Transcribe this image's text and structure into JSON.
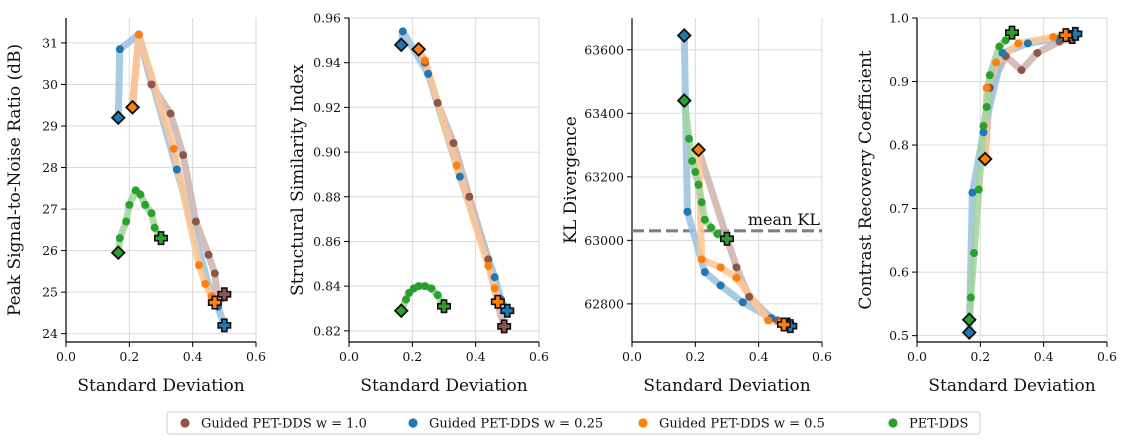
{
  "colors": {
    "guided_w1": "#8c564b",
    "guided_w025": "#1f77b4",
    "guided_w05": "#ff7f0e",
    "pet_dds": "#2ca02c",
    "reference_line": "#808080"
  },
  "legend": [
    {
      "label": "Guided PET-DDS w = 1.0",
      "color": "#8c564b"
    },
    {
      "label": "Guided PET-DDS w = 0.25",
      "color": "#1f77b4"
    },
    {
      "label": "Guided PET-DDS w = 0.5",
      "color": "#ff7f0e"
    },
    {
      "label": "PET-DDS",
      "color": "#2ca02c"
    }
  ],
  "chart_data": [
    {
      "type": "line",
      "ylabel": "Peak Signal-to-Noise Ratio (dB)",
      "xlabel": "Standard Deviation",
      "xlim": [
        0.0,
        0.6
      ],
      "ylim": [
        23.8,
        31.6
      ],
      "xticks": [
        "0.0",
        "0.2",
        "0.4",
        "0.6"
      ],
      "yticks": [
        "24",
        "25",
        "26",
        "27",
        "28",
        "29",
        "30",
        "31"
      ],
      "grid": true,
      "series": [
        {
          "name": "Guided PET-DDS w = 1.0",
          "x": [
            0.21,
            0.23,
            0.27,
            0.33,
            0.37,
            0.41,
            0.45,
            0.47,
            0.48,
            0.5
          ],
          "y": [
            29.45,
            31.2,
            30.0,
            29.3,
            28.3,
            26.7,
            25.9,
            25.45,
            24.7,
            24.95
          ]
        },
        {
          "name": "Guided PET-DDS w = 0.25",
          "x": [
            0.165,
            0.17,
            0.23,
            0.35,
            0.46,
            0.48,
            0.5
          ],
          "y": [
            29.2,
            30.85,
            31.2,
            27.95,
            24.9,
            24.65,
            24.2
          ]
        },
        {
          "name": "Guided PET-DDS w = 0.5",
          "x": [
            0.21,
            0.23,
            0.34,
            0.42,
            0.44,
            0.46,
            0.47
          ],
          "y": [
            29.45,
            31.2,
            28.45,
            25.65,
            25.2,
            24.9,
            24.75
          ]
        },
        {
          "name": "PET-DDS",
          "x": [
            0.165,
            0.17,
            0.19,
            0.2,
            0.22,
            0.235,
            0.25,
            0.27,
            0.28,
            0.3
          ],
          "y": [
            25.95,
            26.3,
            26.7,
            27.1,
            27.45,
            27.35,
            27.1,
            26.9,
            26.55,
            26.3
          ]
        }
      ]
    },
    {
      "type": "line",
      "ylabel": "Structural Similarity Index",
      "xlabel": "Standard Deviation",
      "xlim": [
        0.0,
        0.6
      ],
      "ylim": [
        0.815,
        0.96
      ],
      "xticks": [
        "0.0",
        "0.2",
        "0.4",
        "0.6"
      ],
      "yticks": [
        "0.82",
        "0.84",
        "0.86",
        "0.88",
        "0.90",
        "0.92",
        "0.94",
        "0.96"
      ],
      "grid": true,
      "series": [
        {
          "name": "Guided PET-DDS w = 1.0",
          "x": [
            0.22,
            0.24,
            0.28,
            0.33,
            0.38,
            0.44,
            0.47,
            0.49
          ],
          "y": [
            0.946,
            0.94,
            0.922,
            0.904,
            0.88,
            0.852,
            0.832,
            0.822
          ]
        },
        {
          "name": "Guided PET-DDS w = 0.25",
          "x": [
            0.165,
            0.17,
            0.25,
            0.35,
            0.46,
            0.48,
            0.5
          ],
          "y": [
            0.948,
            0.954,
            0.935,
            0.889,
            0.844,
            0.834,
            0.829
          ]
        },
        {
          "name": "Guided PET-DDS w = 0.5",
          "x": [
            0.22,
            0.24,
            0.34,
            0.44,
            0.46,
            0.47
          ],
          "y": [
            0.946,
            0.941,
            0.894,
            0.849,
            0.839,
            0.833
          ]
        },
        {
          "name": "PET-DDS",
          "x": [
            0.165,
            0.18,
            0.19,
            0.205,
            0.22,
            0.24,
            0.26,
            0.28,
            0.3
          ],
          "y": [
            0.829,
            0.834,
            0.837,
            0.839,
            0.84,
            0.84,
            0.839,
            0.836,
            0.831
          ]
        }
      ]
    },
    {
      "type": "line",
      "ylabel": "KL Divergence",
      "xlabel": "Standard Deviation",
      "xlim": [
        0.0,
        0.6
      ],
      "ylim": [
        62680,
        63700
      ],
      "xticks": [
        "0.0",
        "0.2",
        "0.4",
        "0.6"
      ],
      "yticks": [
        "62800",
        "63000",
        "63200",
        "63400",
        "63600"
      ],
      "grid": true,
      "annotation": {
        "label": "mean KL",
        "y": 63030
      },
      "series": [
        {
          "name": "Guided PET-DDS w = 1.0",
          "x": [
            0.21,
            0.33,
            0.37,
            0.44,
            0.46,
            0.47,
            0.48,
            0.49
          ],
          "y": [
            63285,
            62915,
            62822,
            62755,
            62748,
            62742,
            62738,
            62735
          ]
        },
        {
          "name": "Guided PET-DDS w = 0.25",
          "x": [
            0.165,
            0.175,
            0.23,
            0.28,
            0.35,
            0.44,
            0.48,
            0.5
          ],
          "y": [
            63645,
            63090,
            62900,
            62858,
            62805,
            62755,
            62740,
            62730
          ]
        },
        {
          "name": "Guided PET-DDS w = 0.5",
          "x": [
            0.21,
            0.22,
            0.28,
            0.33,
            0.43,
            0.47,
            0.48
          ],
          "y": [
            63285,
            62940,
            62915,
            62882,
            62748,
            62740,
            62735
          ]
        },
        {
          "name": "PET-DDS",
          "x": [
            0.165,
            0.18,
            0.19,
            0.2,
            0.21,
            0.22,
            0.23,
            0.25,
            0.27,
            0.3
          ],
          "y": [
            63440,
            63320,
            63250,
            63215,
            63175,
            63120,
            63065,
            63040,
            63020,
            63005
          ]
        }
      ]
    },
    {
      "type": "line",
      "ylabel": "Contrast Recovery Coefficient",
      "xlabel": "Standard Deviation",
      "xlim": [
        0.0,
        0.6
      ],
      "ylim": [
        0.49,
        1.0
      ],
      "xticks": [
        "0.0",
        "0.2",
        "0.4",
        "0.6"
      ],
      "yticks": [
        "0.5",
        "0.6",
        "0.7",
        "0.8",
        "0.9",
        "1.0"
      ],
      "grid": true,
      "series": [
        {
          "name": "Guided PET-DDS w = 1.0",
          "x": [
            0.215,
            0.23,
            0.28,
            0.33,
            0.38,
            0.45,
            0.48,
            0.49
          ],
          "y": [
            0.778,
            0.89,
            0.94,
            0.918,
            0.945,
            0.963,
            0.968,
            0.97
          ]
        },
        {
          "name": "Guided PET-DDS w = 0.25",
          "x": [
            0.165,
            0.175,
            0.21,
            0.27,
            0.35,
            0.45,
            0.48,
            0.5
          ],
          "y": [
            0.505,
            0.725,
            0.82,
            0.945,
            0.96,
            0.968,
            0.972,
            0.975
          ]
        },
        {
          "name": "Guided PET-DDS w = 0.5",
          "x": [
            0.215,
            0.22,
            0.25,
            0.32,
            0.43,
            0.46,
            0.47
          ],
          "y": [
            0.778,
            0.89,
            0.93,
            0.96,
            0.97,
            0.972,
            0.973
          ]
        },
        {
          "name": "PET-DDS",
          "x": [
            0.165,
            0.17,
            0.18,
            0.195,
            0.21,
            0.22,
            0.23,
            0.26,
            0.28,
            0.3
          ],
          "y": [
            0.525,
            0.56,
            0.63,
            0.73,
            0.83,
            0.86,
            0.91,
            0.955,
            0.965,
            0.977
          ]
        }
      ]
    }
  ]
}
